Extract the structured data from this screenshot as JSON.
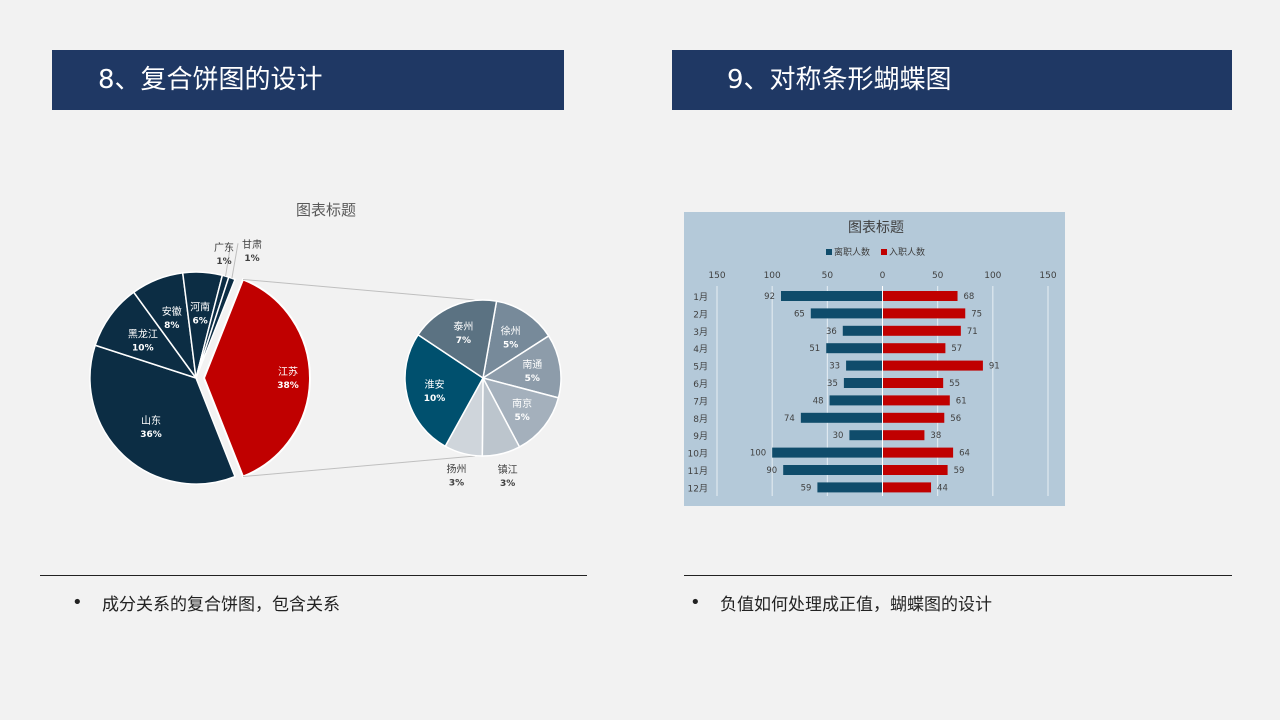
{
  "headers": {
    "left": "8、复合饼图的设计",
    "right": "9、对称条形蝴蝶图"
  },
  "bullets": {
    "left": "成分关系的复合饼图，包含关系",
    "right": "负值如何处理成正值，蝴蝶图的设计"
  },
  "bullet_symbol": "•",
  "chart_data": [
    {
      "type": "pie",
      "subtype": "pie-of-pie",
      "title": "图表标题",
      "main": [
        {
          "label": "山东",
          "value": 36,
          "display": "36%",
          "color": "#0c2d44"
        },
        {
          "label": "黑龙江",
          "value": 10,
          "display": "10%",
          "color": "#0c2d44"
        },
        {
          "label": "安徽",
          "value": 8,
          "display": "8%",
          "color": "#0c2d44"
        },
        {
          "label": "河南",
          "value": 6,
          "display": "6%",
          "color": "#0c2d44"
        },
        {
          "label": "广东",
          "value": 1,
          "display": "1%",
          "color": "#0c2d44"
        },
        {
          "label": "甘肃",
          "value": 1,
          "display": "1%",
          "color": "#0c2d44"
        },
        {
          "label": "江苏",
          "value": 38,
          "display": "38%",
          "color": "#c00000",
          "exploded": true
        }
      ],
      "secondary": [
        {
          "label": "徐州",
          "value": 5,
          "display": "5%",
          "color": "#778a9a"
        },
        {
          "label": "南通",
          "value": 5,
          "display": "5%",
          "color": "#8d9caa"
        },
        {
          "label": "南京",
          "value": 5,
          "display": "5%",
          "color": "#a4b0bc"
        },
        {
          "label": "镇江",
          "value": 3,
          "display": "3%",
          "color": "#bcc5cd"
        },
        {
          "label": "扬州",
          "value": 3,
          "display": "3%",
          "color": "#cfd5db"
        },
        {
          "label": "淮安",
          "value": 10,
          "display": "10%",
          "color": "#00506e"
        },
        {
          "label": "泰州",
          "value": 7,
          "display": "7%",
          "color": "#5b7282"
        }
      ]
    },
    {
      "type": "bar",
      "subtype": "butterfly",
      "title": "图表标题",
      "categories": [
        "1月",
        "2月",
        "3月",
        "4月",
        "5月",
        "6月",
        "7月",
        "8月",
        "9月",
        "10月",
        "11月",
        "12月"
      ],
      "series": [
        {
          "name": "离职人数",
          "values": [
            92,
            65,
            36,
            51,
            33,
            35,
            48,
            74,
            30,
            100,
            90,
            59
          ],
          "color": "#0f4c6b",
          "side": "left"
        },
        {
          "name": "入职人数",
          "values": [
            68,
            75,
            71,
            57,
            91,
            55,
            61,
            56,
            38,
            64,
            59,
            44
          ],
          "color": "#c00000",
          "side": "right"
        }
      ],
      "x_ticks": [
        "150",
        "100",
        "50",
        "0",
        "50",
        "100",
        "150"
      ],
      "xlim": [
        -150,
        150
      ],
      "grid": true,
      "legend": "top"
    }
  ]
}
